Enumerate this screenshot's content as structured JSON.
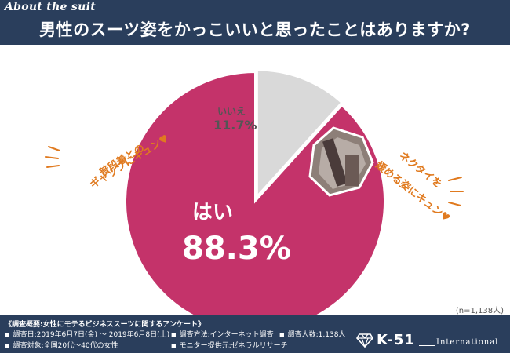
{
  "header": {
    "tag": "About the suit",
    "title": "男性のスーツ姿をかっこいいと思ったことはありますか?"
  },
  "colors": {
    "header_bg": "#2a3e5c",
    "yes": "#c4336a",
    "no": "#d9d9d9",
    "accent": "#e07a1f"
  },
  "chart_data": {
    "type": "pie",
    "start_angle_deg": 0,
    "direction": "counterclockwise",
    "slices": [
      {
        "label": "はい",
        "value": 88.3,
        "display": "88.3%",
        "color": "#c4336a"
      },
      {
        "label": "いいえ",
        "value": 11.7,
        "display": "11.7%",
        "color": "#d9d9d9"
      }
    ],
    "sample_note": "(n=1,138人)"
  },
  "callouts": {
    "left": [
      "普段着との",
      "ギャップにキュン♥"
    ],
    "right": [
      "ネクタイを",
      "緩める姿にキュン♥"
    ]
  },
  "photo_icon": "man-loosening-tie-photo",
  "footer": {
    "title": "《調査概要:女性にモテるビジネススーツに関するアンケート》",
    "date": "調査日:2019年6月7日(金) 〜 2019年6月8日(土)",
    "method": "調査方法:インターネット調査",
    "count": "調査人数:1,138人",
    "target": "調査対象:全国20代〜40代の女性",
    "provider": "モニター提供元:ゼネラルリサーチ"
  },
  "logo": {
    "icon": "diamond-icon",
    "text": "K-51",
    "sub": "International"
  }
}
